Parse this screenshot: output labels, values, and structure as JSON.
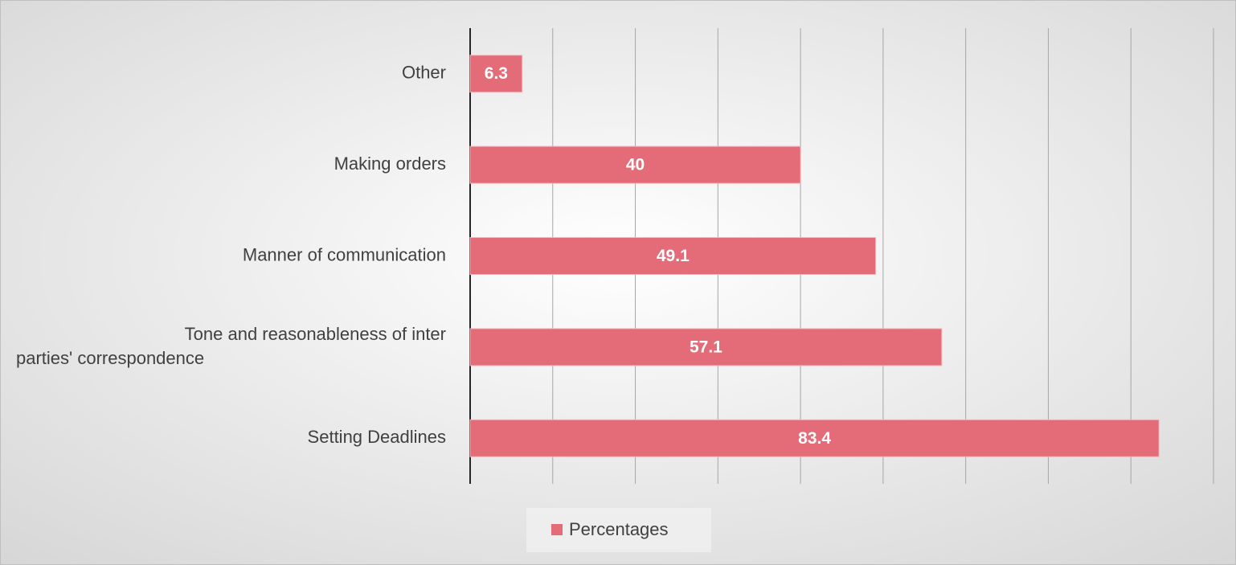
{
  "chart_data": {
    "type": "bar",
    "orientation": "horizontal",
    "categories": [
      "Other",
      "Making orders",
      "Manner of communication",
      "Tone and reasonableness of inter parties' correspondence",
      "Setting Deadlines"
    ],
    "series": [
      {
        "name": "Percentages",
        "color": "#e46c78",
        "values": [
          6.3,
          40,
          49.1,
          57.1,
          83.4
        ]
      }
    ],
    "xlim": [
      0,
      90
    ],
    "xticks": [
      0,
      10,
      20,
      30,
      40,
      50,
      60,
      70,
      80,
      90
    ],
    "grid": true,
    "legend": "bottom"
  }
}
